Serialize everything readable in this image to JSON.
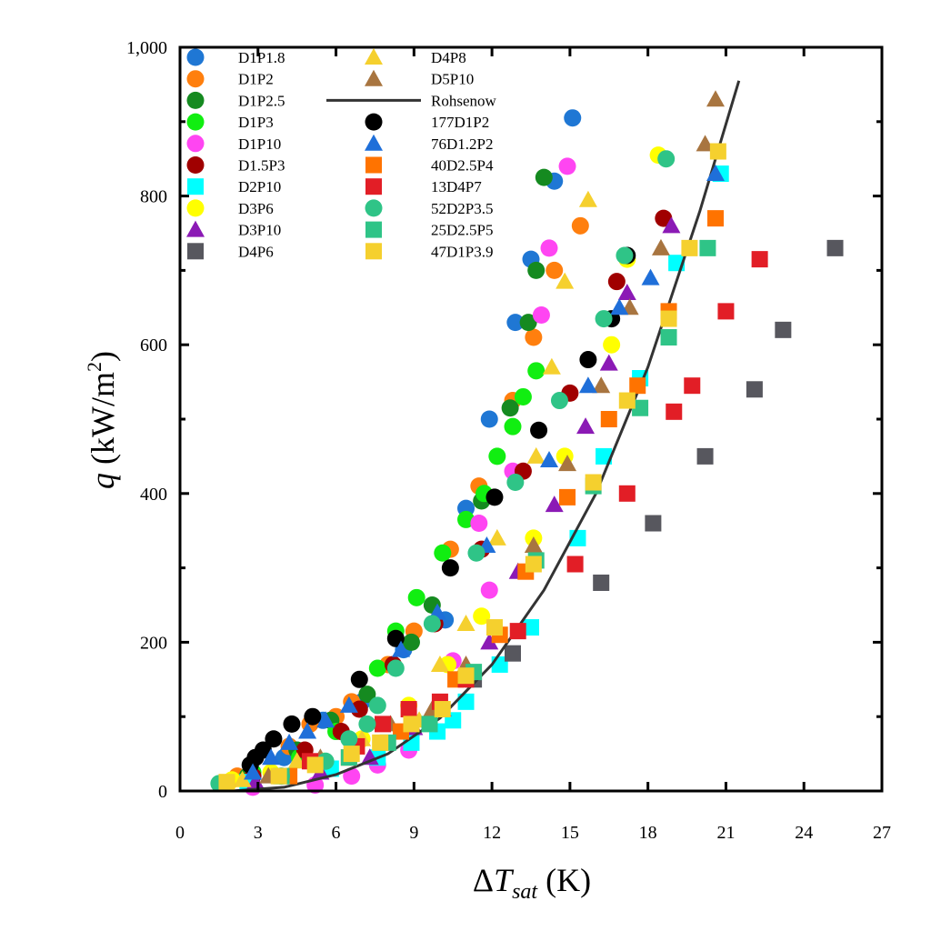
{
  "chart_data": {
    "type": "scatter",
    "title": "",
    "xlabel": "ΔT_sat (K)",
    "xlabel_parts": {
      "delta": "Δ",
      "var": "T",
      "sub": "sat",
      "unit": " (K)"
    },
    "ylabel": "q (kW/m²)",
    "ylabel_parts": {
      "var": "q",
      "unit": " (kW/m",
      "sup": "2",
      "close": ")"
    },
    "xlim": [
      0,
      27
    ],
    "ylim": [
      0,
      1000
    ],
    "xticks": [
      0,
      3,
      6,
      9,
      12,
      15,
      18,
      21,
      24,
      27
    ],
    "xtick_labels": [
      "0",
      "3",
      "6",
      "9",
      "12",
      "15",
      "18",
      "21",
      "24",
      "27"
    ],
    "yticks": [
      0,
      200,
      400,
      600,
      800,
      1000
    ],
    "ytick_labels": [
      "0",
      "200",
      "400",
      "600",
      "800",
      "1,000"
    ],
    "grid": false,
    "legend_position": "top-left",
    "series": [
      {
        "name": "D1P1.8",
        "marker": "circle",
        "color": "#1f77d4",
        "x": [
          2.5,
          4.0,
          5.5,
          7.0,
          8.6,
          10.2,
          11.0,
          11.9,
          12.9,
          13.5,
          15.1,
          14.4
        ],
        "y": [
          15,
          45,
          95,
          120,
          190,
          230,
          380,
          500,
          630,
          715,
          905,
          820
        ]
      },
      {
        "name": "D1P2",
        "marker": "circle",
        "color": "#ff7f0e",
        "x": [
          2.2,
          4.2,
          5.0,
          6.0,
          6.6,
          8.0,
          9.0,
          10.4,
          11.5,
          12.8,
          13.6,
          14.4,
          15.4
        ],
        "y": [
          20,
          60,
          90,
          100,
          120,
          170,
          215,
          325,
          410,
          525,
          610,
          700,
          760
        ]
      },
      {
        "name": "D1P2.5",
        "marker": "circle",
        "color": "#158a20",
        "x": [
          2.6,
          4.5,
          5.8,
          7.2,
          8.9,
          9.7,
          11.6,
          12.7,
          13.4,
          13.7,
          14.0
        ],
        "y": [
          20,
          55,
          95,
          130,
          200,
          250,
          390,
          515,
          630,
          700,
          825
        ]
      },
      {
        "name": "D1P3",
        "marker": "circle",
        "color": "#11ee11",
        "x": [
          2.8,
          4.6,
          6.0,
          7.6,
          8.3,
          9.1,
          10.1,
          11.0,
          11.7,
          12.2,
          12.8,
          13.2,
          13.7
        ],
        "y": [
          25,
          45,
          80,
          165,
          215,
          260,
          320,
          365,
          400,
          450,
          490,
          530,
          565
        ]
      },
      {
        "name": "D1P10",
        "marker": "circle",
        "color": "#ff45f2",
        "x": [
          2.8,
          5.2,
          6.6,
          7.6,
          8.8,
          10.5,
          11.5,
          11.9,
          12.8,
          13.9,
          14.2,
          14.9
        ],
        "y": [
          5,
          8,
          20,
          35,
          55,
          175,
          360,
          270,
          430,
          640,
          730,
          840
        ]
      },
      {
        "name": "D1.5P3",
        "marker": "circle",
        "color": "#a00000",
        "x": [
          2.8,
          4.8,
          6.2,
          6.9,
          8.2,
          9.8,
          11.6,
          13.2,
          15.0,
          16.8,
          18.6
        ],
        "y": [
          20,
          55,
          80,
          110,
          170,
          225,
          325,
          430,
          535,
          685,
          770
        ]
      },
      {
        "name": "D2P10",
        "marker": "square",
        "color": "#00ffff",
        "x": [
          2.6,
          4.0,
          5.8,
          7.6,
          8.9,
          9.9,
          10.5,
          11.0,
          12.3,
          13.5,
          15.3,
          16.3,
          17.7,
          19.1,
          20.8
        ],
        "y": [
          12,
          20,
          30,
          45,
          65,
          80,
          95,
          120,
          170,
          220,
          340,
          450,
          555,
          710,
          830
        ]
      },
      {
        "name": "D3P6",
        "marker": "circle",
        "color": "#ffff00",
        "x": [
          2.0,
          3.5,
          5.5,
          7.0,
          8.8,
          10.3,
          11.6,
          13.6,
          14.8,
          16.6,
          17.2,
          18.4
        ],
        "y": [
          15,
          25,
          40,
          70,
          115,
          170,
          235,
          340,
          450,
          600,
          715,
          855
        ]
      },
      {
        "name": "D3P10",
        "marker": "triangle",
        "color": "#8b1ab5",
        "x": [
          2.9,
          5.4,
          7.3,
          9.0,
          10.1,
          11.9,
          13.0,
          14.4,
          15.6,
          16.5,
          17.2,
          18.9
        ],
        "y": [
          12,
          25,
          45,
          85,
          110,
          200,
          295,
          385,
          490,
          575,
          670,
          760
        ]
      },
      {
        "name": "D4P6",
        "marker": "square",
        "color": "#57575e",
        "x": [
          11.3,
          12.8,
          16.2,
          18.2,
          20.2,
          22.1,
          23.2,
          25.2
        ],
        "y": [
          150,
          185,
          280,
          360,
          450,
          540,
          620,
          730
        ]
      },
      {
        "name": "D4P8",
        "marker": "triangle",
        "color": "#f5d02e",
        "x": [
          2.4,
          4.5,
          7.0,
          9.2,
          10.0,
          11.0,
          12.2,
          13.7,
          14.3,
          14.8,
          15.7
        ],
        "y": [
          15,
          40,
          70,
          95,
          170,
          225,
          340,
          450,
          570,
          685,
          795
        ]
      },
      {
        "name": "D5P10",
        "marker": "triangle",
        "color": "#a87540",
        "x": [
          3.4,
          5.4,
          8.1,
          9.7,
          11.0,
          13.6,
          14.9,
          16.2,
          17.3,
          18.5,
          20.2,
          20.6
        ],
        "y": [
          20,
          45,
          90,
          110,
          170,
          330,
          440,
          545,
          650,
          730,
          870,
          930
        ]
      },
      {
        "name": "Rohsenow",
        "marker": "line",
        "color": "#333333",
        "x": [
          2.0,
          4.0,
          6.0,
          8.0,
          10.0,
          12.0,
          14.0,
          16.0,
          18.0,
          20.0,
          21.5
        ],
        "y": [
          0,
          5,
          22,
          50,
          98,
          170,
          270,
          400,
          570,
          780,
          955
        ]
      },
      {
        "name": "177D1P2",
        "marker": "circle",
        "color": "#000000",
        "x": [
          2.7,
          2.9,
          3.2,
          3.6,
          4.3,
          5.1,
          6.9,
          8.3,
          10.4,
          12.1,
          13.8,
          15.7,
          16.6,
          17.2
        ],
        "y": [
          35,
          45,
          55,
          70,
          90,
          100,
          150,
          205,
          300,
          395,
          485,
          580,
          635,
          720
        ]
      },
      {
        "name": "76D1.2P2",
        "marker": "triangle",
        "color": "#1f6fd9",
        "x": [
          2.8,
          3.5,
          4.2,
          4.9,
          5.6,
          6.5,
          8.5,
          9.9,
          11.8,
          14.2,
          15.7,
          16.9,
          18.1,
          20.6
        ],
        "y": [
          25,
          45,
          65,
          80,
          95,
          115,
          190,
          240,
          330,
          445,
          545,
          650,
          690,
          830
        ]
      },
      {
        "name": "40D2.5P4",
        "marker": "square",
        "color": "#ff7300",
        "x": [
          4.2,
          6.5,
          8.5,
          10.6,
          12.3,
          13.3,
          14.9,
          16.5,
          17.6,
          18.8,
          20.6
        ],
        "y": [
          20,
          45,
          80,
          150,
          210,
          295,
          395,
          500,
          545,
          645,
          770
        ]
      },
      {
        "name": "13D4P7",
        "marker": "square",
        "color": "#e21e26",
        "x": [
          1.8,
          5.0,
          6.8,
          7.8,
          8.8,
          10.0,
          11.0,
          13.0,
          15.2,
          17.2,
          19.0,
          19.7,
          21.0,
          22.3
        ],
        "y": [
          10,
          40,
          60,
          90,
          110,
          120,
          150,
          215,
          305,
          400,
          510,
          545,
          645,
          715
        ]
      },
      {
        "name": "52D2P3.5",
        "marker": "circle",
        "color": "#2fc487",
        "x": [
          1.5,
          3.9,
          5.6,
          6.5,
          7.2,
          7.6,
          8.3,
          9.7,
          11.4,
          12.9,
          14.6,
          16.3,
          17.1,
          18.7
        ],
        "y": [
          10,
          20,
          40,
          70,
          90,
          115,
          165,
          225,
          320,
          415,
          525,
          635,
          720,
          850
        ]
      },
      {
        "name": "25D2.5P5",
        "marker": "square",
        "color": "#2fc487",
        "x": [
          3.9,
          6.5,
          8.0,
          9.6,
          11.3,
          13.7,
          15.9,
          17.7,
          18.8,
          20.3
        ],
        "y": [
          20,
          45,
          65,
          90,
          160,
          310,
          410,
          515,
          610,
          730
        ]
      },
      {
        "name": "47D1P3.9",
        "marker": "square",
        "color": "#f5d02e",
        "x": [
          1.8,
          3.8,
          5.2,
          6.6,
          7.7,
          8.9,
          10.1,
          11.0,
          12.1,
          13.6,
          15.9,
          17.2,
          18.8,
          19.6,
          20.7
        ],
        "y": [
          12,
          20,
          35,
          50,
          65,
          90,
          110,
          155,
          220,
          305,
          415,
          525,
          635,
          730,
          860
        ]
      }
    ]
  }
}
